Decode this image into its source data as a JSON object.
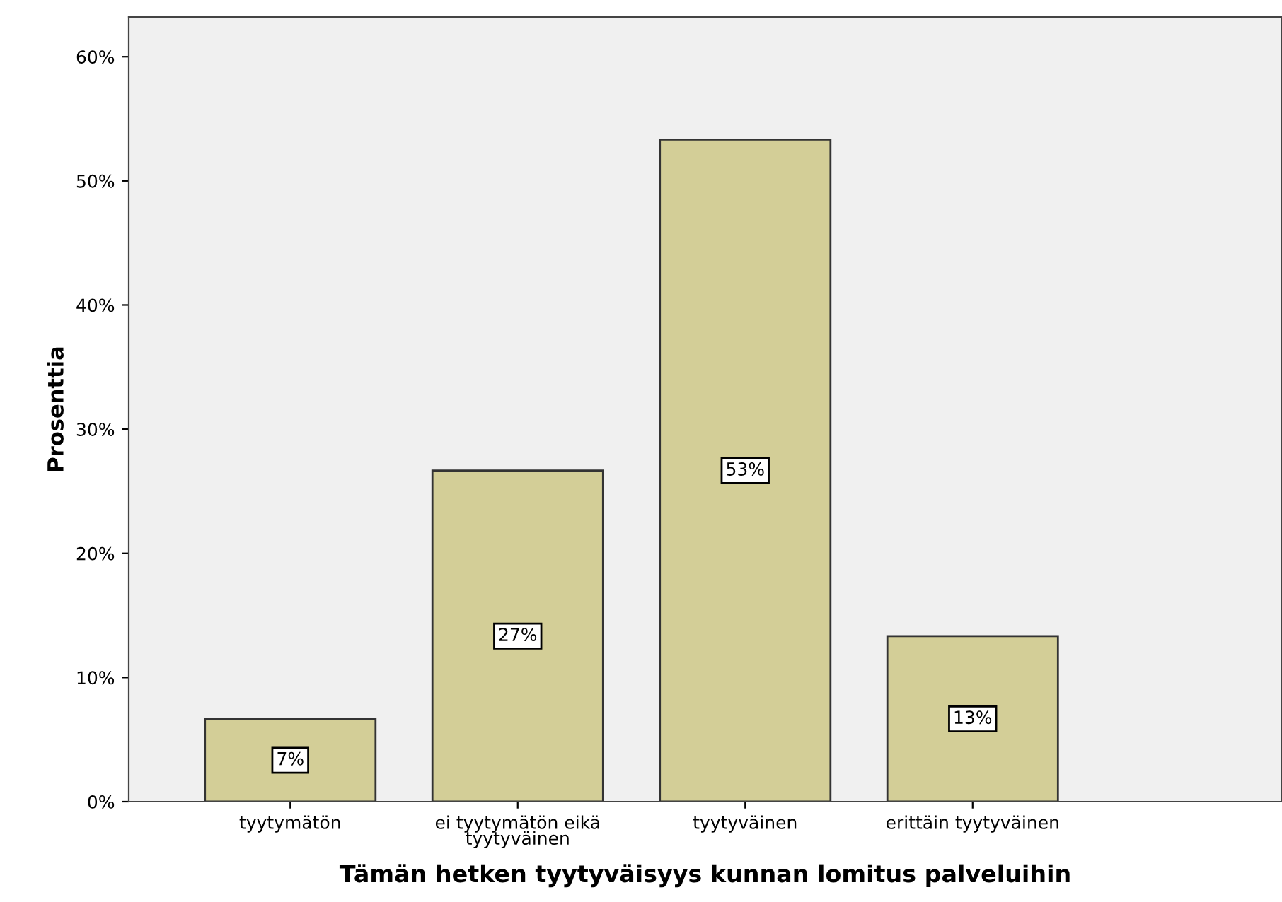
{
  "chart_data": {
    "type": "bar",
    "categories": [
      "tyytymätön",
      "ei tyytymätön eikä\ntyytyväinen",
      "tyytyväinen",
      "erittäin tyytyväinen"
    ],
    "values": [
      6.67,
      26.67,
      53.33,
      13.33
    ],
    "value_labels": [
      "7%",
      "27%",
      "53%",
      "13%"
    ],
    "color": "#d3ce97",
    "xlabel": "Tämän hetken tyytyväisyys kunnan lomitus palveluihin",
    "ylabel": "Prosenttia",
    "ylim": [
      0,
      63.2
    ],
    "yticks": [
      {
        "value": 0,
        "label": "0%"
      },
      {
        "value": 10,
        "label": "10%"
      },
      {
        "value": 20,
        "label": "20%"
      },
      {
        "value": 30,
        "label": "30%"
      },
      {
        "value": 40,
        "label": "40%"
      },
      {
        "value": 50,
        "label": "50%"
      },
      {
        "value": 60,
        "label": "60%"
      }
    ],
    "grid": false
  }
}
